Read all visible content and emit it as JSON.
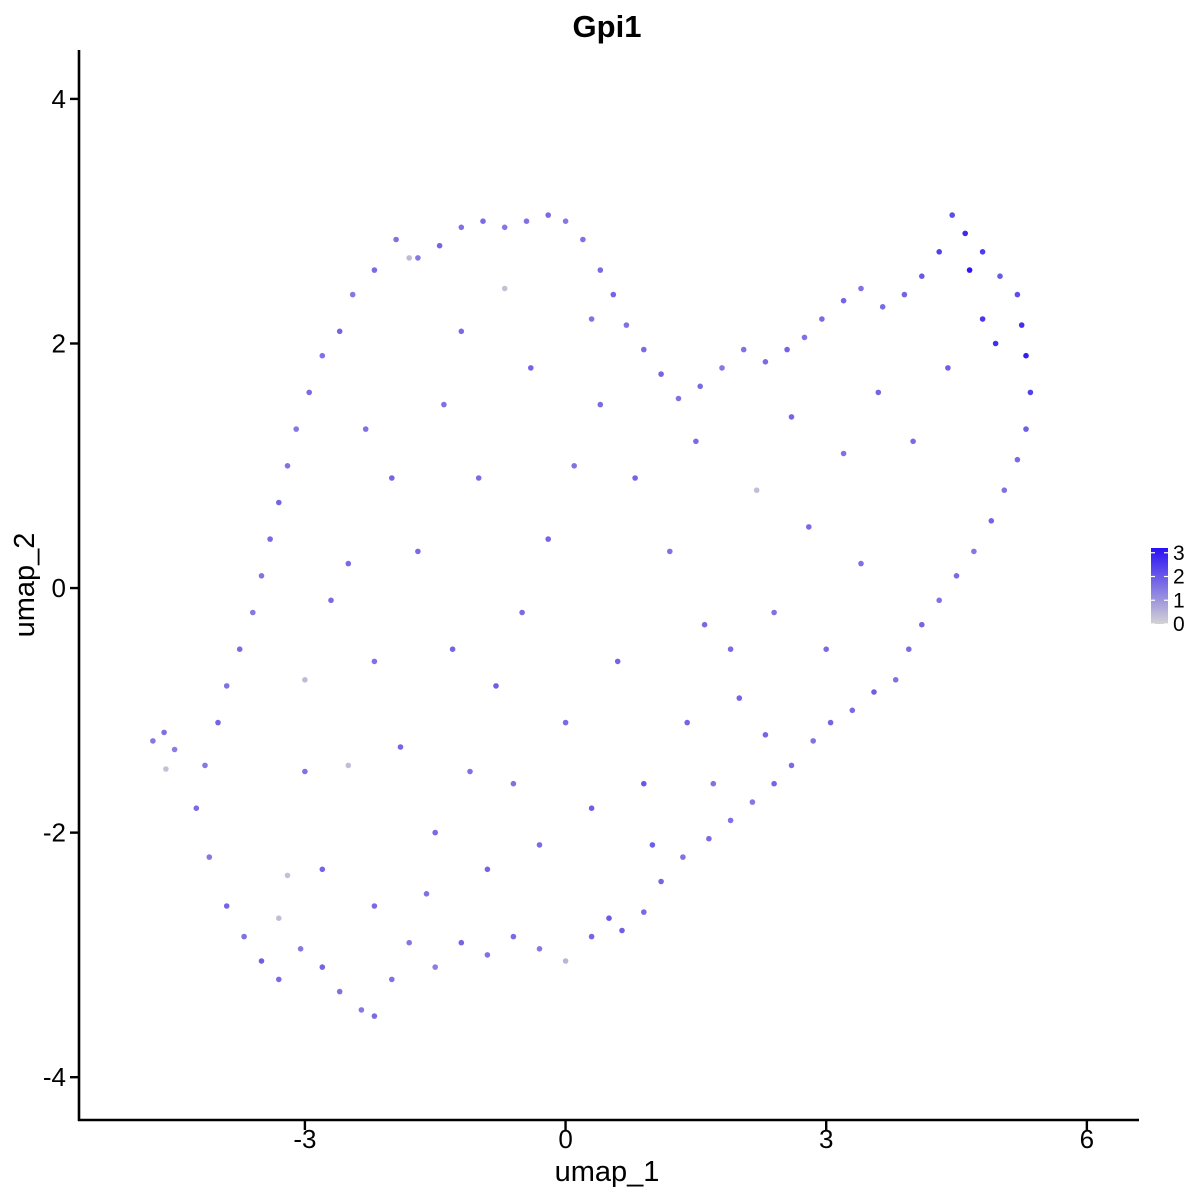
{
  "chart_data": {
    "type": "scatter",
    "title": "Gpi1",
    "xlabel": "umap_1",
    "ylabel": "umap_2",
    "xlim": [
      -5.6,
      6.6
    ],
    "ylim": [
      -4.35,
      4.4
    ],
    "xticks": [
      -3,
      0,
      3,
      6
    ],
    "yticks": [
      -4,
      -2,
      0,
      2,
      4
    ],
    "grid": false,
    "legend": {
      "placement": "right",
      "type": "colorbar",
      "ticks": [
        0,
        1,
        2,
        3
      ],
      "range": [
        0,
        3.2
      ],
      "low_color": "#d3d3d3",
      "high_color": "#2a10f5"
    },
    "point_color_low": "#d3d3d3",
    "point_color_high": "#2a10f5",
    "series": [
      {
        "columns": [
          "umap_1",
          "umap_2",
          "expression"
        ],
        "points": [
          [
            -4.75,
            -1.25,
            1.5
          ],
          [
            -4.62,
            -1.18,
            1.6
          ],
          [
            -4.6,
            -1.48,
            0.3
          ],
          [
            -4.5,
            -1.32,
            1.4
          ],
          [
            -4.25,
            -1.8,
            1.7
          ],
          [
            -4.1,
            -2.2,
            1.5
          ],
          [
            -3.9,
            -2.6,
            1.8
          ],
          [
            -3.7,
            -2.85,
            1.6
          ],
          [
            -3.5,
            -3.05,
            1.9
          ],
          [
            -3.3,
            -3.2,
            1.7
          ],
          [
            -3.05,
            -2.95,
            1.5
          ],
          [
            -2.8,
            -3.1,
            1.8
          ],
          [
            -2.6,
            -3.3,
            1.6
          ],
          [
            -2.35,
            -3.45,
            1.5
          ],
          [
            -2.2,
            -3.5,
            1.7
          ],
          [
            -2.0,
            -3.2,
            1.6
          ],
          [
            -1.8,
            -2.9,
            1.5
          ],
          [
            -1.5,
            -3.1,
            1.4
          ],
          [
            -1.2,
            -2.9,
            1.8
          ],
          [
            -0.9,
            -3.0,
            1.6
          ],
          [
            -0.6,
            -2.85,
            1.7
          ],
          [
            -0.3,
            -2.95,
            1.5
          ],
          [
            0.0,
            -3.05,
            0.5
          ],
          [
            0.3,
            -2.85,
            1.8
          ],
          [
            0.5,
            -2.7,
            2.0
          ],
          [
            0.65,
            -2.8,
            1.9
          ],
          [
            0.9,
            -2.65,
            1.7
          ],
          [
            1.1,
            -2.4,
            1.8
          ],
          [
            1.35,
            -2.2,
            1.6
          ],
          [
            1.65,
            -2.05,
            1.7
          ],
          [
            1.9,
            -1.9,
            1.6
          ],
          [
            2.15,
            -1.75,
            1.5
          ],
          [
            2.4,
            -1.6,
            1.8
          ],
          [
            2.6,
            -1.45,
            1.7
          ],
          [
            2.85,
            -1.25,
            1.6
          ],
          [
            3.05,
            -1.1,
            1.8
          ],
          [
            3.3,
            -1.0,
            1.7
          ],
          [
            3.55,
            -0.85,
            1.9
          ],
          [
            3.8,
            -0.75,
            1.6
          ],
          [
            3.95,
            -0.5,
            1.7
          ],
          [
            4.1,
            -0.3,
            1.8
          ],
          [
            4.3,
            -0.1,
            1.6
          ],
          [
            4.5,
            0.1,
            1.7
          ],
          [
            4.7,
            0.3,
            1.5
          ],
          [
            4.9,
            0.55,
            1.8
          ],
          [
            5.05,
            0.8,
            1.6
          ],
          [
            5.2,
            1.05,
            1.7
          ],
          [
            5.3,
            1.3,
            1.9
          ],
          [
            5.35,
            1.6,
            2.4
          ],
          [
            5.3,
            1.9,
            3.0
          ],
          [
            5.25,
            2.15,
            2.7
          ],
          [
            5.2,
            2.4,
            2.2
          ],
          [
            5.0,
            2.55,
            2.0
          ],
          [
            4.8,
            2.75,
            2.5
          ],
          [
            4.6,
            2.9,
            2.8
          ],
          [
            4.45,
            3.05,
            2.2
          ],
          [
            4.3,
            2.75,
            2.4
          ],
          [
            4.1,
            2.55,
            2.0
          ],
          [
            3.9,
            2.4,
            1.8
          ],
          [
            3.65,
            2.3,
            1.7
          ],
          [
            3.4,
            2.45,
            1.6
          ],
          [
            3.2,
            2.35,
            1.8
          ],
          [
            2.95,
            2.2,
            1.7
          ],
          [
            2.75,
            2.05,
            1.6
          ],
          [
            2.55,
            1.95,
            1.8
          ],
          [
            2.3,
            1.85,
            1.7
          ],
          [
            2.05,
            1.95,
            1.6
          ],
          [
            1.8,
            1.8,
            1.5
          ],
          [
            1.55,
            1.65,
            1.7
          ],
          [
            1.3,
            1.55,
            1.6
          ],
          [
            1.1,
            1.75,
            1.8
          ],
          [
            0.9,
            1.95,
            1.7
          ],
          [
            0.7,
            2.15,
            1.6
          ],
          [
            0.55,
            2.4,
            1.8
          ],
          [
            0.4,
            2.6,
            1.7
          ],
          [
            0.2,
            2.85,
            1.6
          ],
          [
            0.0,
            3.0,
            1.5
          ],
          [
            -0.2,
            3.05,
            1.7
          ],
          [
            -0.45,
            3.0,
            1.6
          ],
          [
            -0.7,
            2.95,
            1.5
          ],
          [
            -0.95,
            3.0,
            1.7
          ],
          [
            -1.2,
            2.95,
            1.6
          ],
          [
            -1.45,
            2.8,
            1.8
          ],
          [
            -1.7,
            2.7,
            1.5
          ],
          [
            -1.95,
            2.85,
            1.6
          ],
          [
            -2.2,
            2.6,
            1.7
          ],
          [
            -2.45,
            2.4,
            1.5
          ],
          [
            -2.6,
            2.1,
            1.8
          ],
          [
            -2.8,
            1.9,
            1.6
          ],
          [
            -2.95,
            1.6,
            1.7
          ],
          [
            -3.1,
            1.3,
            1.5
          ],
          [
            -3.2,
            1.0,
            1.6
          ],
          [
            -3.3,
            0.7,
            1.8
          ],
          [
            -3.4,
            0.4,
            1.7
          ],
          [
            -3.5,
            0.1,
            1.6
          ],
          [
            -3.6,
            -0.2,
            1.5
          ],
          [
            -3.75,
            -0.5,
            1.7
          ],
          [
            -3.9,
            -0.8,
            1.6
          ],
          [
            -4.0,
            -1.1,
            1.8
          ],
          [
            -4.15,
            -1.45,
            1.5
          ],
          [
            -3.0,
            -0.75,
            0.4
          ],
          [
            -3.2,
            -2.35,
            0.3
          ],
          [
            -2.5,
            -1.45,
            0.35
          ],
          [
            -0.7,
            2.45,
            0.3
          ],
          [
            2.2,
            0.8,
            0.35
          ],
          [
            -1.8,
            2.7,
            0.4
          ],
          [
            -3.3,
            -2.7,
            0.35
          ],
          [
            -2.5,
            0.2,
            1.7
          ],
          [
            -2.2,
            -0.6,
            1.6
          ],
          [
            -1.9,
            -1.3,
            1.8
          ],
          [
            -1.5,
            -2.0,
            1.7
          ],
          [
            -1.1,
            -1.5,
            1.6
          ],
          [
            -0.8,
            -0.8,
            1.9
          ],
          [
            -0.5,
            -0.2,
            1.7
          ],
          [
            -0.2,
            0.4,
            1.8
          ],
          [
            0.1,
            1.0,
            1.6
          ],
          [
            0.4,
            1.5,
            1.7
          ],
          [
            0.8,
            0.9,
            1.8
          ],
          [
            1.2,
            0.3,
            1.6
          ],
          [
            1.6,
            -0.3,
            1.7
          ],
          [
            2.0,
            -0.9,
            1.8
          ],
          [
            2.4,
            -0.2,
            1.6
          ],
          [
            2.8,
            0.5,
            1.7
          ],
          [
            3.2,
            1.1,
            1.6
          ],
          [
            3.6,
            1.6,
            1.8
          ],
          [
            4.0,
            1.2,
            1.7
          ],
          [
            4.4,
            1.8,
            1.9
          ],
          [
            4.8,
            2.2,
            2.6
          ],
          [
            4.65,
            2.6,
            3.1
          ],
          [
            4.95,
            2.0,
            2.7
          ],
          [
            -1.0,
            0.9,
            1.7
          ],
          [
            -1.4,
            1.5,
            1.6
          ],
          [
            -2.0,
            0.9,
            1.8
          ],
          [
            -2.7,
            -0.1,
            1.7
          ],
          [
            -3.0,
            -1.5,
            1.6
          ],
          [
            -2.8,
            -2.3,
            1.8
          ],
          [
            -2.2,
            -2.6,
            1.7
          ],
          [
            -1.6,
            -2.5,
            1.6
          ],
          [
            -0.9,
            -2.3,
            1.8
          ],
          [
            -0.3,
            -2.1,
            1.7
          ],
          [
            0.3,
            -1.8,
            1.9
          ],
          [
            0.9,
            -1.6,
            2.0
          ],
          [
            1.4,
            -1.1,
            1.8
          ],
          [
            1.9,
            -0.5,
            1.7
          ],
          [
            0.6,
            -0.6,
            1.8
          ],
          [
            0.0,
            -1.1,
            1.7
          ],
          [
            -0.6,
            -1.6,
            1.6
          ],
          [
            -1.3,
            -0.5,
            1.8
          ],
          [
            -1.7,
            0.3,
            1.7
          ],
          [
            -2.3,
            1.3,
            1.6
          ],
          [
            -1.2,
            2.1,
            1.7
          ],
          [
            -0.4,
            1.8,
            1.8
          ],
          [
            0.3,
            2.2,
            1.6
          ],
          [
            1.5,
            1.2,
            1.7
          ],
          [
            2.6,
            1.4,
            1.8
          ],
          [
            3.4,
            0.2,
            1.6
          ],
          [
            3.0,
            -0.5,
            1.7
          ],
          [
            2.3,
            -1.2,
            1.8
          ],
          [
            1.7,
            -1.6,
            1.6
          ],
          [
            1.0,
            -2.1,
            1.9
          ]
        ]
      }
    ]
  }
}
